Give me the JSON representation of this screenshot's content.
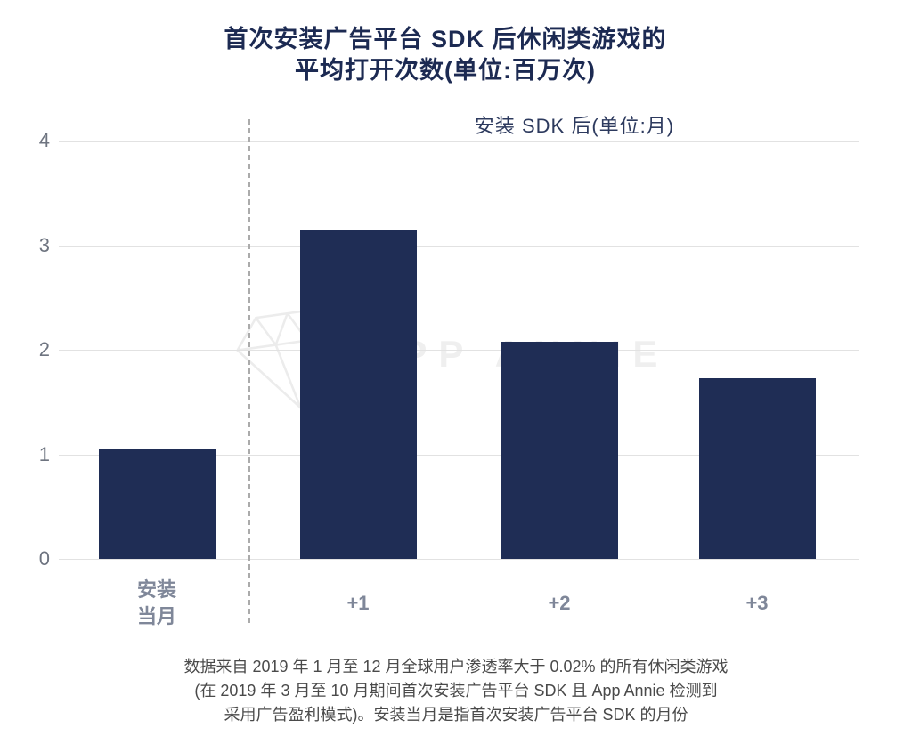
{
  "title": {
    "line1": "首次安装广告平台 SDK 后休闲类游戏的",
    "line2": "平均打开次数(单位:百万次)"
  },
  "chart_data": {
    "type": "bar",
    "title": "首次安装广告平台 SDK 后休闲类游戏的平均打开次数(单位:百万次)",
    "annotation": "安装 SDK 后(单位:月)",
    "categories": [
      "安装\n当月",
      "+1",
      "+2",
      "+3"
    ],
    "values": [
      1.05,
      3.15,
      2.08,
      1.73
    ],
    "xlabel": "",
    "ylabel": "",
    "ylim": [
      0,
      4
    ],
    "yticks": [
      0,
      1,
      2,
      3,
      4
    ],
    "grid": true,
    "legend": false,
    "bar_color": "#1f2d55",
    "separator_note": "dashed vertical line between 安装当月 and +1 columns"
  },
  "watermark": {
    "brand": "APP ANNIE",
    "icon": "gem"
  },
  "footer": {
    "line1": "数据来自 2019 年 1 月至 12 月全球用户渗透率大于 0.02% 的所有休闲类游戏",
    "line2": "(在 2019 年 3 月至 10 月期间首次安装广告平台 SDK 且 App Annie 检测到",
    "line3": "采用广告盈利模式)。安装当月是指首次安装广告平台 SDK 的月份"
  },
  "colors": {
    "bar": "#1f2d55",
    "title_text": "#1c2a52",
    "axis_label": "#6e7480",
    "category_label": "#7f8799",
    "gridline": "#e2e2e2",
    "footer_text": "#4a4a4a",
    "watermark": "#efefef"
  }
}
